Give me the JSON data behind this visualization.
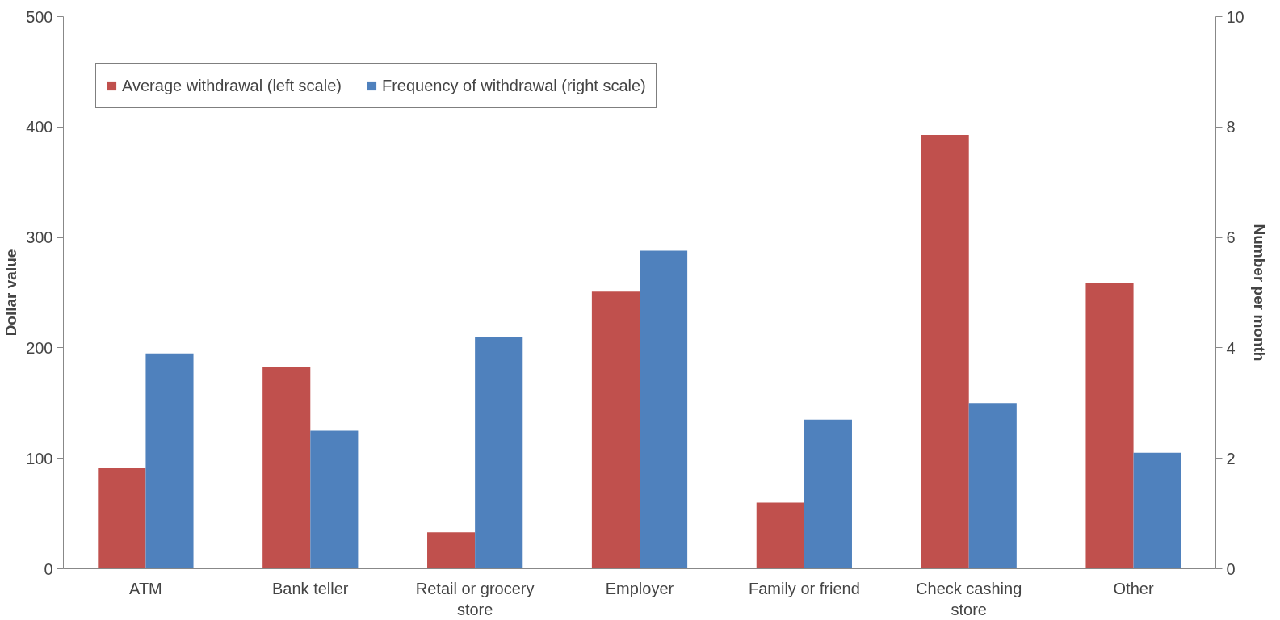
{
  "chart_data": {
    "type": "bar",
    "ylabel": "Dollar value",
    "y2label": "Number per month",
    "categories": [
      "ATM",
      "Bank teller",
      "Retail or grocery store",
      "Employer",
      "Family or friend",
      "Check cashing store",
      "Other"
    ],
    "series": [
      {
        "name": "Average withdrawal (left scale)",
        "color": "#c0504d",
        "values": [
          91,
          183,
          33,
          251,
          60,
          393,
          259
        ]
      },
      {
        "name": "Frequency of withdrawal (right scale)",
        "color": "#4f81bd",
        "axis": "y2",
        "values": [
          3.9,
          2.5,
          4.2,
          5.76,
          2.7,
          3.0,
          2.1
        ]
      }
    ],
    "ylim": [
      0,
      500
    ],
    "yticks": [
      0,
      100,
      200,
      300,
      400,
      500
    ],
    "y2lim": [
      0,
      10
    ],
    "y2ticks": [
      0,
      2,
      4,
      6,
      8,
      10
    ],
    "grid": false,
    "legend": "top"
  }
}
